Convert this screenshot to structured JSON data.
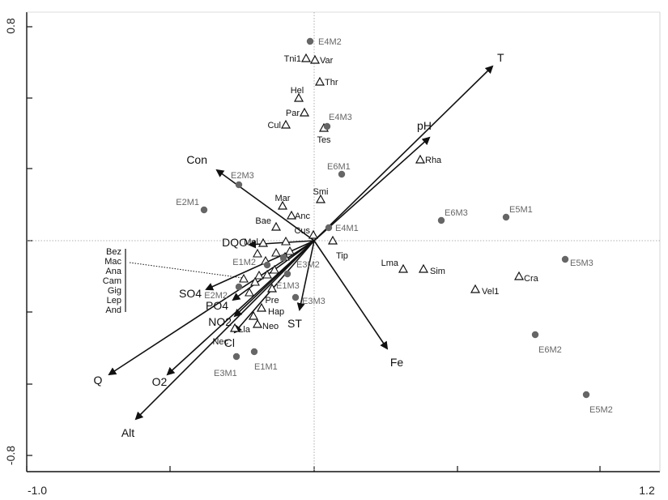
{
  "chart_data": {
    "type": "scatter",
    "title": "",
    "xlabel": "",
    "ylabel": "",
    "xlim": [
      -1.0,
      1.2
    ],
    "ylim": [
      -0.8,
      0.8
    ],
    "x_tick_labels": [
      "-1.0",
      "1.2"
    ],
    "y_tick_labels": [
      "0.8",
      "-0.8"
    ],
    "origin_guides": "dotted",
    "grid": false,
    "series": [
      {
        "kind": "sites",
        "marker": "filled-circle",
        "color": "#666666",
        "points": [
          {
            "label": "E4M2",
            "x": -0.02,
            "y": 0.69
          },
          {
            "label": "E4M3",
            "x": 0.02,
            "y": 0.63
          },
          {
            "label": "E6M1",
            "x": 0.04,
            "y": 0.44
          },
          {
            "label": "E2M3",
            "x": -0.11,
            "y": 0.35
          },
          {
            "label": "E2M1",
            "x": -0.17,
            "y": 0.31
          },
          {
            "label": "E4M1",
            "x": 0.02,
            "y": 0.27
          },
          {
            "label": "E6M3",
            "x": 0.19,
            "y": 0.25
          },
          {
            "label": "E5M1",
            "x": 0.28,
            "y": 0.25
          },
          {
            "label": "E5M3",
            "x": 0.37,
            "y": 0.14
          },
          {
            "label": "E3M2",
            "x": -0.04,
            "y": 0.17
          },
          {
            "label": "E1M2",
            "x": -0.06,
            "y": 0.16
          },
          {
            "label": "E1M3",
            "x": -0.03,
            "y": 0.11
          },
          {
            "label": "E2M2",
            "x": -0.1,
            "y": 0.09
          },
          {
            "label": "E3M3",
            "x": -0.02,
            "y": 0.06
          },
          {
            "label": "E6M2",
            "x": 0.32,
            "y": -0.08
          },
          {
            "label": "E3M1",
            "x": -0.1,
            "y": -0.03
          },
          {
            "label": "E1M1",
            "x": -0.07,
            "y": -0.02
          },
          {
            "label": "E5M2",
            "x": 0.38,
            "y": -0.2
          }
        ]
      },
      {
        "kind": "species",
        "marker": "open-triangle",
        "color": "#111111",
        "points": [
          {
            "label": "Tni1",
            "x": -0.04,
            "y": 0.64
          },
          {
            "label": "Var",
            "x": -0.02,
            "y": 0.64
          },
          {
            "label": "Thr",
            "x": 0.01,
            "y": 0.57
          },
          {
            "label": "Hel",
            "x": -0.03,
            "y": 0.53
          },
          {
            "label": "Par",
            "x": -0.02,
            "y": 0.51
          },
          {
            "label": "Cul",
            "x": -0.04,
            "y": 0.49
          },
          {
            "label": "Tes",
            "x": 0.02,
            "y": 0.47
          },
          {
            "label": "Rha",
            "x": 0.14,
            "y": 0.42
          },
          {
            "label": "Smi",
            "x": 0.01,
            "y": 0.36
          },
          {
            "label": "Mar",
            "x": -0.04,
            "y": 0.32
          },
          {
            "label": "Anc",
            "x": -0.03,
            "y": 0.31
          },
          {
            "label": "Bae",
            "x": -0.05,
            "y": 0.29
          },
          {
            "label": "Cus",
            "x": 0.0,
            "y": 0.27
          },
          {
            "label": "Tip",
            "x": 0.02,
            "y": 0.25
          },
          {
            "label": "Mol",
            "x": -0.07,
            "y": 0.24
          },
          {
            "label": "Lma",
            "x": 0.12,
            "y": 0.17
          },
          {
            "label": "Sim",
            "x": 0.14,
            "y": 0.17
          },
          {
            "label": "Vel1",
            "x": 0.22,
            "y": 0.14
          },
          {
            "label": "Cra",
            "x": 0.28,
            "y": 0.12
          },
          {
            "label": "Pre",
            "x": -0.06,
            "y": 0.1
          },
          {
            "label": "Hap",
            "x": -0.06,
            "y": 0.06
          },
          {
            "label": "Neo",
            "x": -0.07,
            "y": 0.04
          },
          {
            "label": "Nec",
            "x": -0.09,
            "y": 0.03
          },
          {
            "label": "Lla",
            "x": -0.07,
            "y": 0.02
          }
        ]
      },
      {
        "kind": "environmental-vectors",
        "marker": "arrow",
        "color": "#111111",
        "arrows": [
          {
            "label": "T",
            "x": 0.35,
            "y": 0.48
          },
          {
            "label": "pH",
            "x": 0.23,
            "y": 0.3
          },
          {
            "label": "Con",
            "x": -0.24,
            "y": 0.24
          },
          {
            "label": "DQO",
            "x": -0.14,
            "y": 0.18
          },
          {
            "label": "SO4",
            "x": -0.25,
            "y": 0.07
          },
          {
            "label": "PO4",
            "x": -0.16,
            "y": 0.03
          },
          {
            "label": "NO2",
            "x": -0.18,
            "y": 0.0
          },
          {
            "label": "Cl",
            "x": -0.15,
            "y": -0.01
          },
          {
            "label": "ST",
            "x": -0.03,
            "y": 0.01
          },
          {
            "label": "Fe",
            "x": 0.06,
            "y": -0.02
          },
          {
            "label": "Q",
            "x": -0.53,
            "y": -0.14
          },
          {
            "label": "O2",
            "x": -0.38,
            "y": -0.14
          },
          {
            "label": "Alt",
            "x": -0.27,
            "y": -0.21
          }
        ]
      }
    ],
    "grouped_species_label": [
      "Bez",
      "Mac",
      "Ana",
      "Cam",
      "Gig",
      "Lep",
      "And"
    ]
  }
}
